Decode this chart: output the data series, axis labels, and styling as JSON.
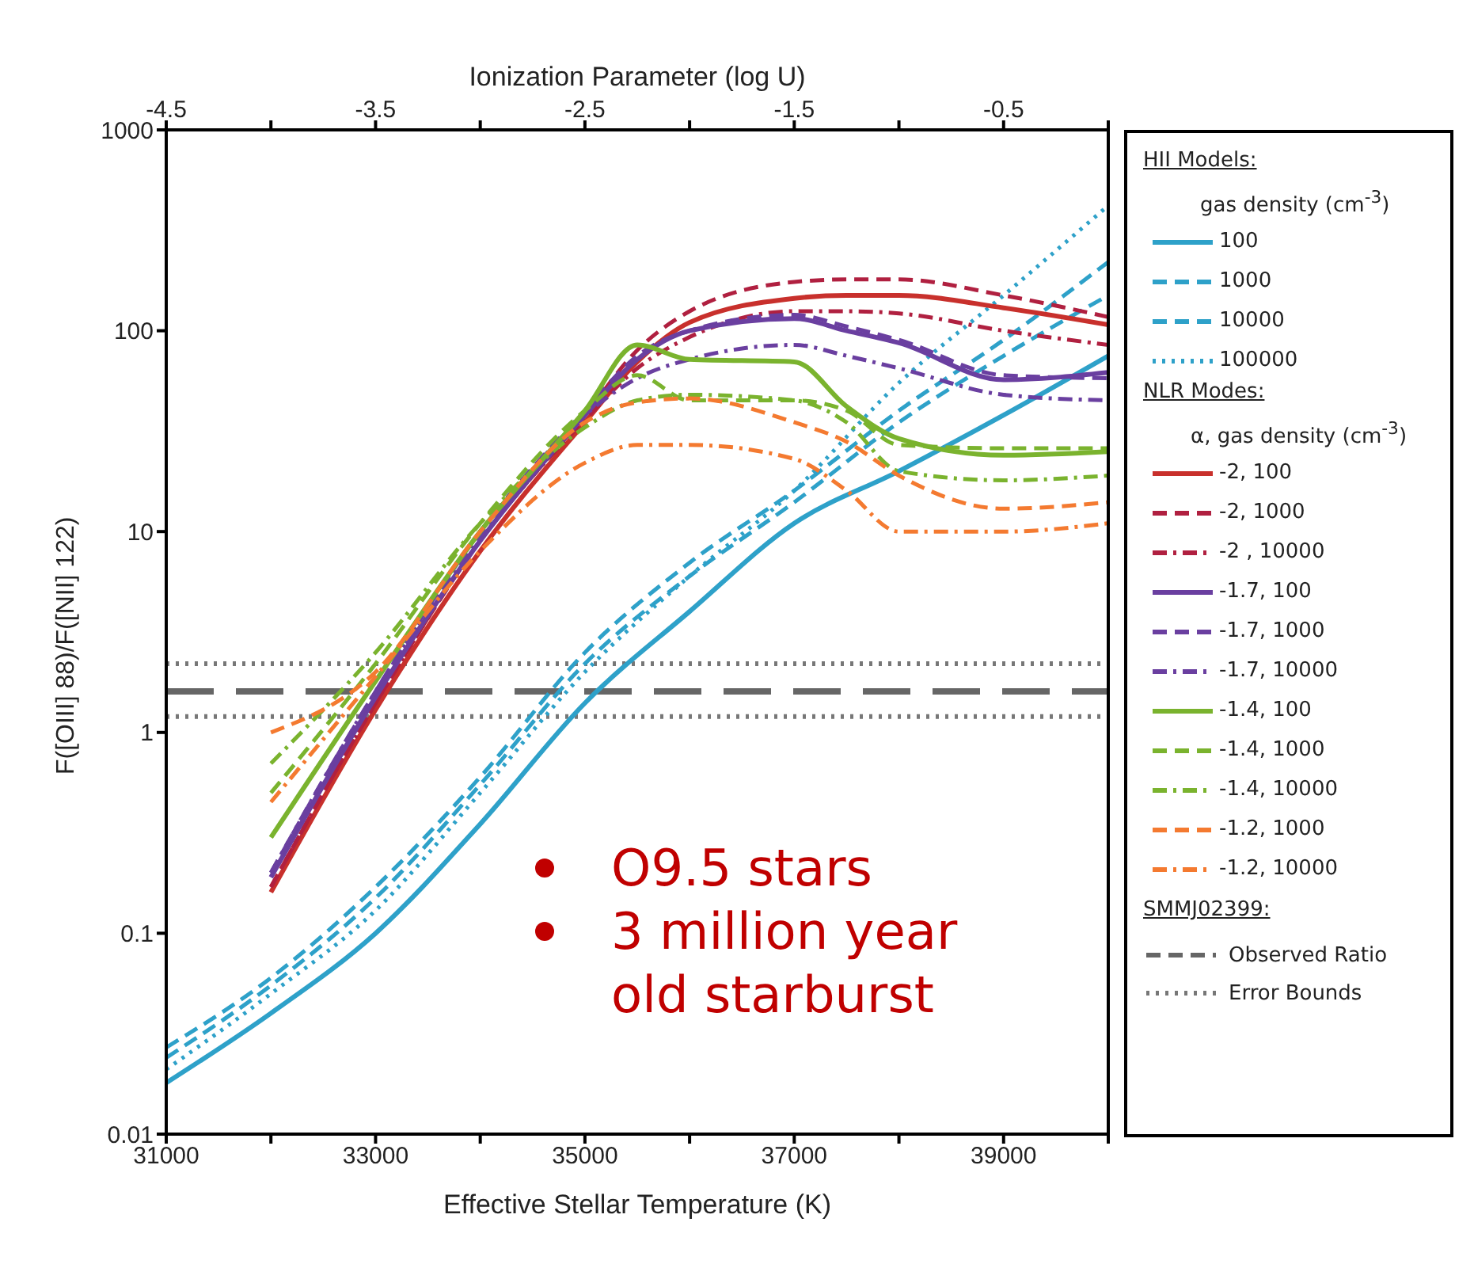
{
  "chart_data": {
    "type": "line",
    "xlabel": "Effective Stellar Temperature (K)",
    "ylabel": "F([OIII] 88)/F([NII] 122)",
    "x2label": "Ionization Parameter (log U)",
    "xlim": [
      31000,
      40000
    ],
    "xticks": [
      31000,
      {
        "value": 32000,
        "label": null
      },
      33000,
      {
        "value": 34000,
        "label": null
      },
      35000,
      {
        "value": 36000,
        "label": null
      },
      37000,
      {
        "value": 38000,
        "label": null
      },
      39000,
      {
        "value": 40000,
        "label": null
      }
    ],
    "x2lim": [
      -4.5,
      0
    ],
    "x2ticks": [
      -4.5,
      {
        "value": -4,
        "label": null
      },
      -3.5,
      {
        "value": -3,
        "label": null
      },
      -2.5,
      {
        "value": -2,
        "label": null
      },
      -1.5,
      {
        "value": -1,
        "label": null
      },
      -0.5,
      {
        "value": 0,
        "label": null
      }
    ],
    "ylim": [
      0.01,
      1000
    ],
    "yticks": [
      0.01,
      0.1,
      1,
      10,
      100,
      1000
    ],
    "log": "y",
    "grid": false,
    "legend": "right",
    "marker": "none",
    "series": [
      {
        "name": "100",
        "color": "#2ea1c9",
        "line_style": "solid",
        "x": [
          31000,
          32000,
          33000,
          34000,
          35000,
          36000,
          37000,
          38000,
          39000,
          40000
        ],
        "values": [
          0.018,
          0.04,
          0.1,
          0.35,
          1.4,
          4,
          11,
          20,
          38,
          75
        ]
      },
      {
        "name": "1000",
        "color": "#2ea1c9",
        "line_style": "dashed",
        "x": [
          31000,
          32000,
          33000,
          34000,
          35000,
          36000,
          37000,
          38000,
          39000,
          40000
        ],
        "values": [
          0.027,
          0.06,
          0.17,
          0.6,
          2.5,
          7,
          16,
          40,
          90,
          220
        ]
      },
      {
        "name": "10000",
        "color": "#2ea1c9",
        "line_style": "dashed",
        "x": [
          31000,
          32000,
          33000,
          34000,
          35000,
          36000,
          37000,
          38000,
          39000,
          40000
        ],
        "values": [
          0.024,
          0.055,
          0.15,
          0.55,
          2.2,
          6,
          14,
          35,
          75,
          150
        ]
      },
      {
        "name": "100000",
        "color": "#2ea1c9",
        "line_style": "dotted",
        "x": [
          31000,
          32000,
          33000,
          34000,
          35000,
          36000,
          37000,
          38000,
          39000,
          40000
        ],
        "values": [
          0.021,
          0.05,
          0.13,
          0.5,
          2,
          6,
          16,
          55,
          150,
          420
        ]
      },
      {
        "name": "-2, 100",
        "color": "#c8302c",
        "line_style": "solid",
        "x": [
          32000,
          33000,
          34000,
          35000,
          35500,
          36000,
          37000,
          37500,
          38000,
          39000,
          40000
        ],
        "values": [
          0.16,
          1.3,
          8,
          35,
          70,
          110,
          145,
          150,
          150,
          130,
          107
        ]
      },
      {
        "name": "-2, 1000",
        "color": "#b02040",
        "line_style": "dashed",
        "x": [
          32000,
          33000,
          34000,
          35000,
          35500,
          36000,
          37000,
          37500,
          38000,
          39000,
          40000
        ],
        "values": [
          0.17,
          1.4,
          9,
          38,
          80,
          125,
          175,
          180,
          180,
          150,
          117
        ]
      },
      {
        "name": "-2 , 10000",
        "color": "#b02040",
        "line_style": "dashdot",
        "x": [
          32000,
          33000,
          34000,
          35000,
          35500,
          36000,
          37000,
          37500,
          38000,
          39000,
          40000
        ],
        "values": [
          0.17,
          1.4,
          9,
          36,
          65,
          93,
          125,
          125,
          122,
          100,
          85
        ]
      },
      {
        "name": "-1.7, 100",
        "color": "#6a3fa0",
        "line_style": "solid",
        "x": [
          32000,
          33000,
          34000,
          35000,
          35500,
          36000,
          37000,
          37500,
          38000,
          39000,
          40000
        ],
        "values": [
          0.19,
          1.5,
          9,
          38,
          72,
          100,
          115,
          100,
          87,
          57,
          62
        ]
      },
      {
        "name": "-1.7, 1000",
        "color": "#6a3fa0",
        "line_style": "dashed",
        "x": [
          32000,
          33000,
          34000,
          35000,
          35500,
          36000,
          37000,
          37500,
          38000,
          39000,
          40000
        ],
        "values": [
          0.2,
          1.6,
          10,
          40,
          75,
          100,
          120,
          105,
          90,
          60,
          58
        ]
      },
      {
        "name": "-1.7, 10000",
        "color": "#6a3fa0",
        "line_style": "dashdot",
        "x": [
          32000,
          33000,
          34000,
          35000,
          35500,
          36000,
          37000,
          37500,
          38000,
          39000,
          40000
        ],
        "values": [
          0.2,
          1.6,
          9.5,
          38,
          58,
          72,
          85,
          75,
          65,
          48,
          45
        ]
      },
      {
        "name": "-1.4, 100",
        "color": "#7ab32e",
        "line_style": "solid",
        "x": [
          32000,
          33000,
          34000,
          35000,
          35500,
          36000,
          37000,
          37500,
          38000,
          39000,
          40000
        ],
        "values": [
          0.3,
          1.8,
          10,
          40,
          85,
          72,
          70,
          42,
          29,
          24,
          25
        ]
      },
      {
        "name": "-1.4, 1000",
        "color": "#7ab32e",
        "line_style": "dashed",
        "x": [
          32000,
          33000,
          34000,
          35000,
          35500,
          36000,
          37000,
          37500,
          38000,
          39000,
          40000
        ],
        "values": [
          0.5,
          2.2,
          11,
          40,
          60,
          45,
          45,
          40,
          27,
          26,
          26
        ]
      },
      {
        "name": "-1.4, 10000",
        "color": "#7ab32e",
        "line_style": "dashdot",
        "x": [
          32000,
          33000,
          34000,
          35000,
          35500,
          36000,
          37000,
          37500,
          38000,
          39000,
          40000
        ],
        "values": [
          0.7,
          2.5,
          11,
          33,
          45,
          48,
          45,
          35,
          20,
          18,
          19
        ]
      },
      {
        "name": "-1.2, 1000",
        "color": "#f47a30",
        "line_style": "dashed",
        "x": [
          32000,
          33000,
          34000,
          35000,
          35500,
          36000,
          37000,
          37500,
          38000,
          39000,
          40000
        ],
        "values": [
          1,
          2,
          10,
          35,
          44,
          46,
          35,
          28,
          19,
          13,
          14
        ]
      },
      {
        "name": "-1.2, 10000",
        "color": "#f47a30",
        "line_style": "dashdot",
        "x": [
          32000,
          33000,
          34000,
          35000,
          35500,
          36000,
          37000,
          37500,
          38000,
          39000,
          40000
        ],
        "values": [
          0.45,
          1.9,
          8,
          22,
          27,
          27,
          23,
          16,
          10,
          10,
          11
        ]
      }
    ],
    "ref_lines": [
      {
        "axis": "y",
        "value": 1.6,
        "label": "Observed Ratio",
        "color": "#666666",
        "line_style": "dashed"
      },
      {
        "axis": "y",
        "value": 2.2,
        "label": "Error Bounds",
        "color": "#777777",
        "line_style": "dotted"
      },
      {
        "axis": "y",
        "value": 1.2,
        "color": "#777777",
        "line_style": "dotted"
      }
    ],
    "annotations": [
      "O9.5 stars",
      "3 million year old starburst",
      "HII Models:",
      "gas density (cm$^{-3}$)",
      "NLR Modes:",
      "α, gas density (cm$^{-3}$)",
      "SMMJ02399:"
    ]
  }
}
